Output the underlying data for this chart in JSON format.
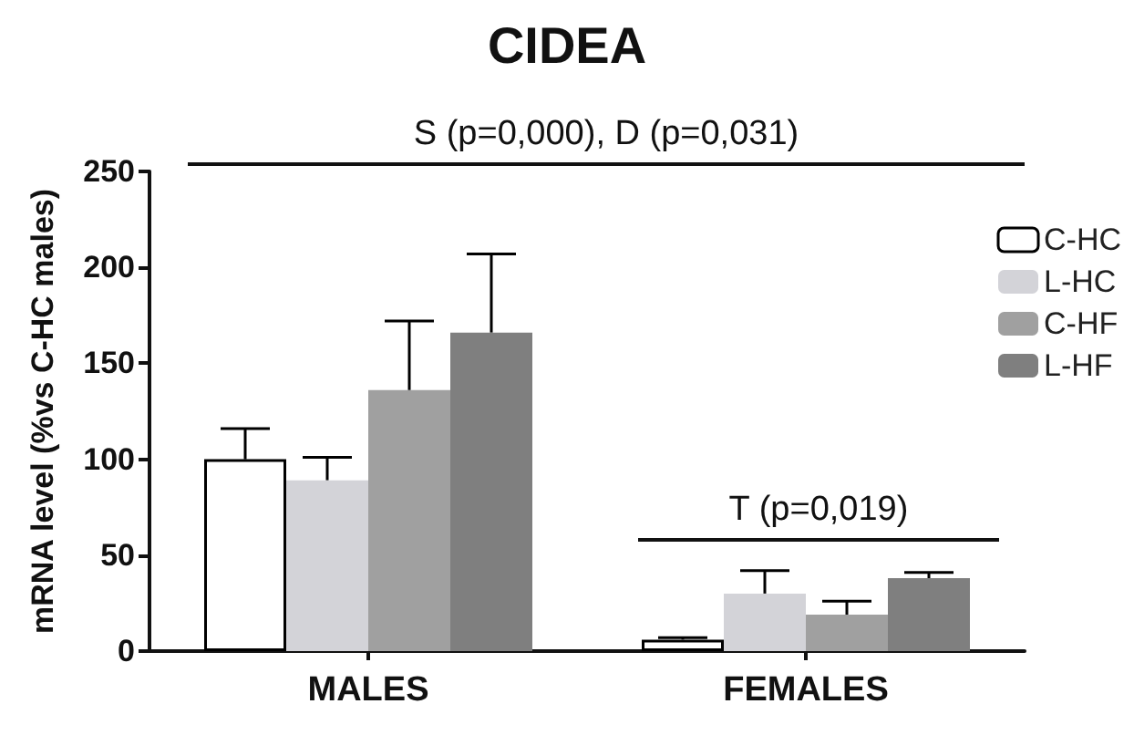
{
  "chart_data": {
    "type": "bar",
    "title": "CIDEA",
    "ylabel": "mRNA level (%vs C-HC males)",
    "categories": [
      "MALES",
      "FEMALES"
    ],
    "series": [
      {
        "name": "C-HC",
        "color": "#ffffff",
        "values": [
          100,
          6
        ],
        "errors": [
          [
            100,
            116
          ],
          [
            6,
            7
          ]
        ]
      },
      {
        "name": "L-HC",
        "color": "#d3d3d8",
        "values": [
          89,
          30
        ],
        "errors": [
          [
            89,
            101
          ],
          [
            30,
            42
          ]
        ]
      },
      {
        "name": "C-HF",
        "color": "#a0a0a0",
        "values": [
          136,
          19
        ],
        "errors": [
          [
            136,
            172
          ],
          [
            19,
            26
          ]
        ]
      },
      {
        "name": "L-HF",
        "color": "#7f7f7f",
        "values": [
          166,
          38
        ],
        "errors": [
          [
            166,
            207
          ],
          [
            38,
            41
          ]
        ]
      }
    ],
    "ylim": [
      0,
      250
    ],
    "yticks": [
      0,
      50,
      100,
      150,
      200,
      250
    ],
    "grid": false,
    "legend": "top right",
    "annotations": [
      "S (p=0,000), D (p=0,031)",
      "T (p=0,019)"
    ]
  }
}
